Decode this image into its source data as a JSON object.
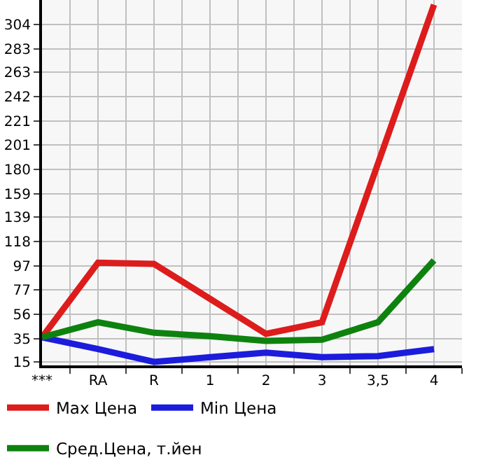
{
  "chart_data": {
    "type": "line",
    "categories": [
      "***",
      "RA",
      "R",
      "1",
      "2",
      "3",
      "3,5",
      "4"
    ],
    "series": [
      {
        "name": "Max Цена",
        "color": "#dd1c1c",
        "values": [
          36,
          100,
          99,
          69,
          39,
          49,
          185,
          321
        ]
      },
      {
        "name": "Min Цена",
        "color": "#1c1cdd",
        "values": [
          36,
          26,
          15,
          19,
          23,
          19,
          20,
          26
        ]
      },
      {
        "name": "Сред.Цена, т.йен",
        "color": "#0e820e",
        "values": [
          36,
          49,
          40,
          37,
          33,
          34,
          49,
          102
        ]
      }
    ],
    "ylim": [
      12,
      325
    ],
    "yticks": [
      15,
      35,
      56,
      77,
      97,
      118,
      139,
      159,
      180,
      201,
      221,
      242,
      263,
      283,
      304
    ],
    "grid": true,
    "legend": "bottom",
    "marker": "none",
    "line_style": "solid"
  }
}
